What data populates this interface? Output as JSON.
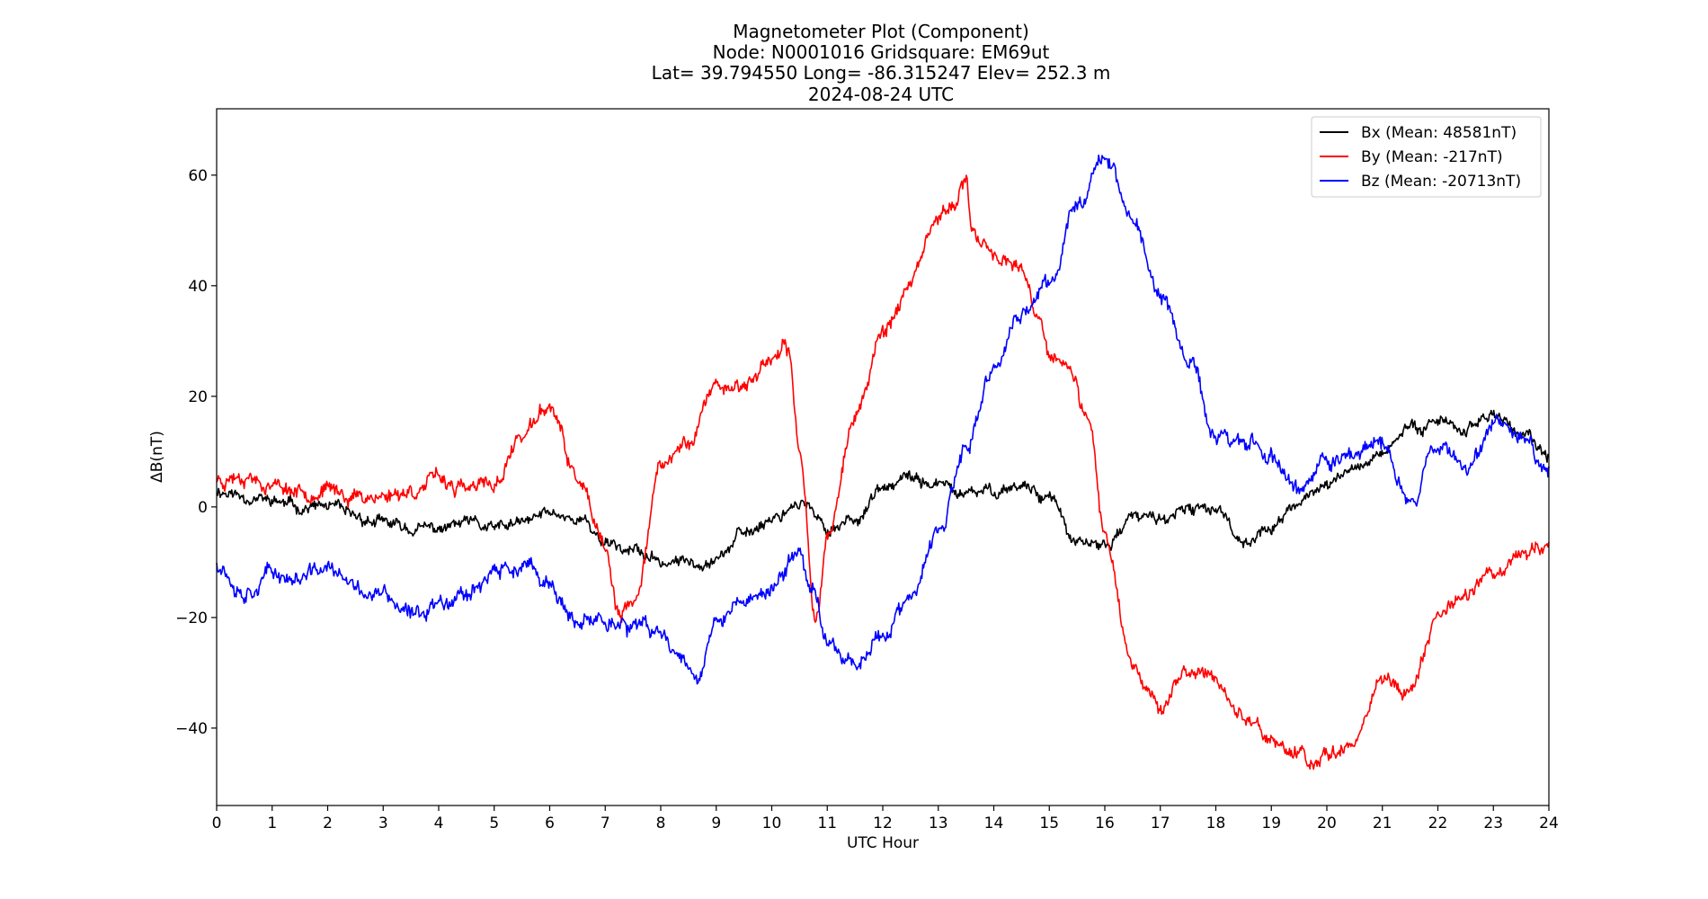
{
  "chart_data": {
    "type": "line",
    "title_lines": [
      "Magnetometer Plot (Component)",
      "Node:  N0001016     Gridsquare:  EM69ut",
      "Lat= 39.794550    Long= -86.315247    Elev= 252.3 m",
      "2024-08-24  UTC"
    ],
    "xlabel": "UTC Hour",
    "ylabel": "ΔB(nT)",
    "xlim": [
      0,
      24
    ],
    "ylim": [
      -54,
      72
    ],
    "x_ticks": [
      0,
      1,
      2,
      3,
      4,
      5,
      6,
      7,
      8,
      9,
      10,
      11,
      12,
      13,
      14,
      15,
      16,
      17,
      18,
      19,
      20,
      21,
      22,
      23,
      24
    ],
    "x_tick_labels": [
      "0",
      "1",
      "2",
      "3",
      "4",
      "5",
      "6",
      "7",
      "8",
      "9",
      "10",
      "11",
      "12",
      "13",
      "14",
      "15",
      "16",
      "17",
      "18",
      "19",
      "20",
      "21",
      "22",
      "23",
      "24"
    ],
    "y_ticks": [
      -40,
      -20,
      0,
      20,
      40,
      60
    ],
    "y_tick_labels": [
      "−40",
      "−20",
      "0",
      "20",
      "40",
      "60"
    ],
    "grid": false,
    "legend_position": "top-right",
    "series": [
      {
        "name": "Bx (Mean: 48581nT)",
        "color": "#000000",
        "x": [
          0,
          0.5,
          1,
          1.5,
          2,
          2.5,
          3,
          3.5,
          4,
          4.5,
          5,
          5.5,
          6,
          6.5,
          7,
          7.5,
          8,
          8.5,
          9,
          9.5,
          10,
          10.5,
          11,
          11.5,
          12,
          12.5,
          13,
          13.5,
          14,
          14.5,
          15,
          15.5,
          16,
          16.5,
          17,
          17.5,
          18,
          18.5,
          19,
          19.5,
          20,
          20.5,
          21,
          21.5,
          22,
          22.5,
          23,
          23.5,
          24
        ],
        "y": [
          3,
          2,
          1,
          0,
          0,
          -2,
          -3,
          -4,
          -4,
          -3,
          -4,
          -3,
          -1,
          -2,
          -6,
          -8,
          -10,
          -10,
          -9,
          -5,
          -2,
          1,
          -4,
          -2,
          3,
          5,
          4,
          2,
          3,
          4,
          2,
          -7,
          -7,
          -2,
          -2,
          -1,
          0,
          -6,
          -4,
          1,
          4,
          7,
          10,
          14,
          16,
          14,
          17,
          13,
          9
        ],
        "amp": 0.8,
        "seed": 11
      },
      {
        "name": "By (Mean: -217nT)",
        "color": "#ff0000",
        "x": [
          0,
          0.5,
          1,
          1.5,
          2,
          2.5,
          3,
          3.5,
          4,
          4.5,
          5,
          5.5,
          6,
          6.5,
          7,
          7.25,
          7.5,
          8,
          8.5,
          9,
          9.5,
          10,
          10.3,
          10.5,
          10.8,
          11,
          11.5,
          12,
          12.5,
          13,
          13.5,
          13.6,
          14,
          14.5,
          14.8,
          15,
          15.3,
          15.7,
          16,
          16.5,
          17,
          17.5,
          18,
          18.5,
          19,
          19.5,
          19.75,
          20,
          20.5,
          21,
          21.5,
          22,
          22.5,
          23,
          23.5,
          24
        ],
        "y": [
          5,
          6,
          4,
          3,
          3,
          2,
          2,
          3,
          5,
          3,
          4,
          13,
          18,
          5,
          -8,
          -20,
          -18,
          7,
          12,
          22,
          22,
          27,
          28,
          10,
          -20,
          -5,
          16,
          32,
          40,
          52,
          58,
          50,
          46,
          42,
          34,
          27,
          26,
          15,
          -5,
          -28,
          -36,
          -30,
          -31,
          -38,
          -42,
          -45,
          -47,
          -44,
          -42,
          -31,
          -33,
          -20,
          -15,
          -12,
          -8,
          -7
        ],
        "amp": 1.0,
        "seed": 23
      },
      {
        "name": "Bz (Mean: -20713nT)",
        "color": "#0000ff",
        "x": [
          0,
          0.5,
          1,
          1.5,
          2,
          2.5,
          3,
          3.5,
          4,
          4.5,
          5,
          5.5,
          6,
          6.5,
          7,
          7.5,
          8,
          8.5,
          8.7,
          9,
          9.5,
          10,
          10.5,
          10.7,
          11,
          11.5,
          12,
          12.5,
          13,
          13.5,
          14,
          14.5,
          15,
          15.5,
          16,
          16.5,
          17,
          17.5,
          18,
          18.5,
          19,
          19.5,
          20,
          20.5,
          21,
          21.5,
          22,
          22.5,
          23,
          23.5,
          24
        ],
        "y": [
          -10,
          -15,
          -12,
          -13,
          -11,
          -15,
          -16,
          -20,
          -17,
          -15,
          -12,
          -11,
          -14,
          -22,
          -20,
          -22,
          -23,
          -28,
          -30,
          -21,
          -17,
          -15,
          -8,
          -14,
          -24,
          -28,
          -23,
          -17,
          -5,
          10,
          25,
          35,
          40,
          55,
          64,
          52,
          38,
          27,
          13,
          12,
          9,
          3,
          8,
          10,
          11,
          1,
          12,
          7,
          16,
          13,
          7
        ],
        "amp": 1.1,
        "seed": 37
      }
    ]
  }
}
